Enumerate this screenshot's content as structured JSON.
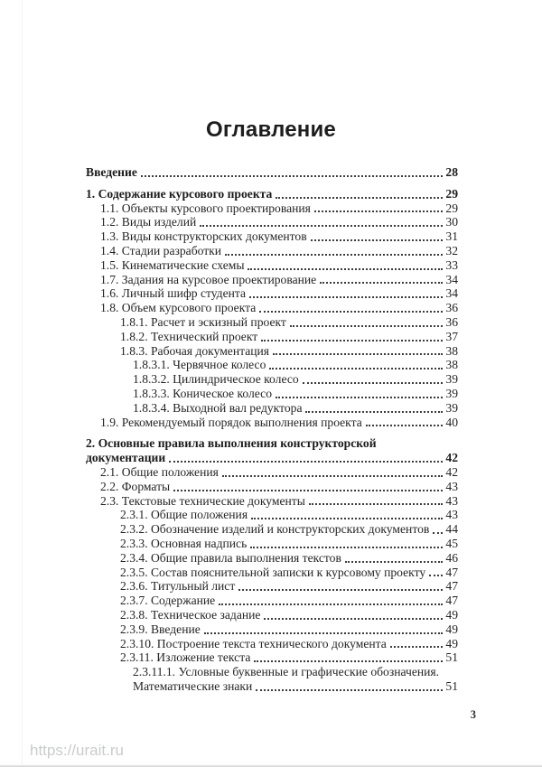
{
  "document": {
    "title": "Оглавление",
    "footer_page_number": "3",
    "watermark": "https://urait.ru",
    "colors": {
      "text": "#242424",
      "watermark": "#c9cbcd"
    },
    "toc": [
      {
        "lines": [
          "Введение"
        ],
        "page": "28",
        "level": 0,
        "bold": true,
        "gap_before": false
      },
      {
        "lines": [
          "1. Содержание курсового проекта"
        ],
        "page": "29",
        "level": 0,
        "bold": true,
        "gap_before": true
      },
      {
        "lines": [
          "1.1. Объекты курсового проектирования"
        ],
        "page": "29",
        "level": 1,
        "bold": false,
        "gap_before": false
      },
      {
        "lines": [
          "1.2. Виды изделий"
        ],
        "page": "30",
        "level": 1,
        "bold": false,
        "gap_before": false
      },
      {
        "lines": [
          "1.3. Виды конструкторских документов"
        ],
        "page": "31",
        "level": 1,
        "bold": false,
        "gap_before": false
      },
      {
        "lines": [
          "1.4. Стадии разработки"
        ],
        "page": "32",
        "level": 1,
        "bold": false,
        "gap_before": false
      },
      {
        "lines": [
          "1.5. Кинематические схемы"
        ],
        "page": "33",
        "level": 1,
        "bold": false,
        "gap_before": false
      },
      {
        "lines": [
          "1.7. Задания на курсовое проектирование"
        ],
        "page": "34",
        "level": 1,
        "bold": false,
        "gap_before": false
      },
      {
        "lines": [
          "1.6. Личный шифр студента"
        ],
        "page": "34",
        "level": 1,
        "bold": false,
        "gap_before": false
      },
      {
        "lines": [
          "1.8. Объем курсового проекта"
        ],
        "page": "36",
        "level": 1,
        "bold": false,
        "gap_before": false
      },
      {
        "lines": [
          "1.8.1. Расчет и эскизный проект"
        ],
        "page": "36",
        "level": 2,
        "bold": false,
        "gap_before": false
      },
      {
        "lines": [
          "1.8.2. Технический проект"
        ],
        "page": "37",
        "level": 2,
        "bold": false,
        "gap_before": false
      },
      {
        "lines": [
          "1.8.3. Рабочая документация"
        ],
        "page": "38",
        "level": 2,
        "bold": false,
        "gap_before": false
      },
      {
        "lines": [
          "1.8.3.1. Червячное колесо"
        ],
        "page": "38",
        "level": 3,
        "bold": false,
        "gap_before": false
      },
      {
        "lines": [
          "1.8.3.2. Цилиндрическое колесо"
        ],
        "page": "39",
        "level": 3,
        "bold": false,
        "gap_before": false
      },
      {
        "lines": [
          "1.8.3.3. Коническое колесо"
        ],
        "page": "39",
        "level": 3,
        "bold": false,
        "gap_before": false
      },
      {
        "lines": [
          "1.8.3.4. Выходной вал редуктора"
        ],
        "page": "39",
        "level": 3,
        "bold": false,
        "gap_before": false
      },
      {
        "lines": [
          "1.9. Рекомендуемый порядок выполнения проекта"
        ],
        "page": "40",
        "level": 1,
        "bold": false,
        "gap_before": false
      },
      {
        "lines": [
          "2. Основные правила выполнения конструкторской",
          "документации "
        ],
        "page": "42",
        "level": 0,
        "bold": true,
        "gap_before": true
      },
      {
        "lines": [
          "2.1. Общие положения "
        ],
        "page": "42",
        "level": 1,
        "bold": false,
        "gap_before": false
      },
      {
        "lines": [
          "2.2. Форматы "
        ],
        "page": "43",
        "level": 1,
        "bold": false,
        "gap_before": false
      },
      {
        "lines": [
          "2.3. Текстовые технические документы "
        ],
        "page": "43",
        "level": 1,
        "bold": false,
        "gap_before": false
      },
      {
        "lines": [
          "2.3.1. Общие положения"
        ],
        "page": "43",
        "level": 2,
        "bold": false,
        "gap_before": false
      },
      {
        "lines": [
          "2.3.2. Обозначение изделий и конструкторских документов "
        ],
        "page": "44",
        "level": 2,
        "bold": false,
        "gap_before": false
      },
      {
        "lines": [
          "2.3.3. Основная надпись"
        ],
        "page": "45",
        "level": 2,
        "bold": false,
        "gap_before": false
      },
      {
        "lines": [
          "2.3.4. Общие правила выполнения текстов "
        ],
        "page": "46",
        "level": 2,
        "bold": false,
        "gap_before": false
      },
      {
        "lines": [
          "2.3.5. Состав пояснительной записки к курсовому проекту "
        ],
        "page": "47",
        "level": 2,
        "bold": false,
        "gap_before": false
      },
      {
        "lines": [
          "2.3.6. Титульный лист"
        ],
        "page": "47",
        "level": 2,
        "bold": false,
        "gap_before": false
      },
      {
        "lines": [
          "2.3.7. Содержание "
        ],
        "page": "47",
        "level": 2,
        "bold": false,
        "gap_before": false
      },
      {
        "lines": [
          "2.3.8. Техническое задание"
        ],
        "page": "49",
        "level": 2,
        "bold": false,
        "gap_before": false
      },
      {
        "lines": [
          "2.3.9. Введение"
        ],
        "page": "49",
        "level": 2,
        "bold": false,
        "gap_before": false
      },
      {
        "lines": [
          "2.3.10. Построение текста технического документа "
        ],
        "page": "49",
        "level": 2,
        "bold": false,
        "gap_before": false
      },
      {
        "lines": [
          "2.3.11. Изложение текста "
        ],
        "page": "51",
        "level": 2,
        "bold": false,
        "gap_before": false
      },
      {
        "lines": [
          "2.3.11.1. Условные буквенные и графические обозначения.",
          "Математические знаки"
        ],
        "page": "51",
        "level": 3,
        "bold": false,
        "gap_before": false
      }
    ]
  }
}
